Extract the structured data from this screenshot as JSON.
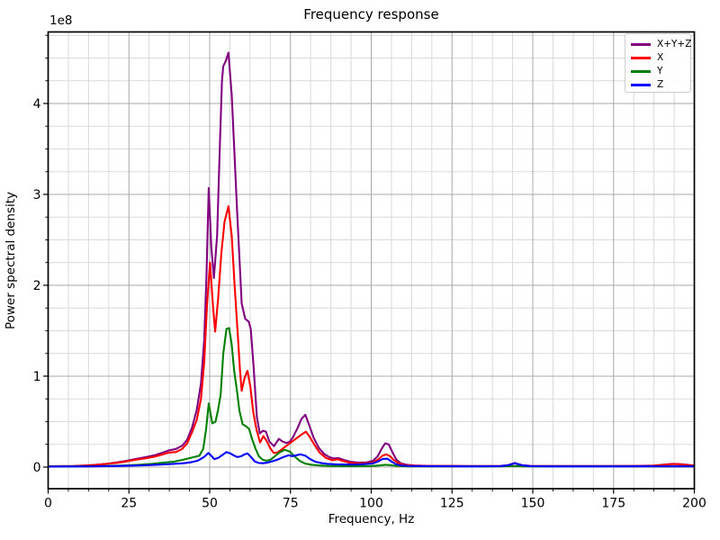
{
  "figure": {
    "title": "Frequency response",
    "xlabel": "Frequency, Hz",
    "ylabel": "Power spectral density",
    "y_offset_label": "1e8"
  },
  "chart_data": {
    "type": "line",
    "title": "Frequency response",
    "xlabel": "Frequency, Hz",
    "ylabel": "Power spectral density",
    "y_units_factor": "1e8",
    "xlim": [
      0,
      200
    ],
    "ylim": [
      -0.238,
      4.787
    ],
    "x_ticks": [
      0,
      25,
      50,
      75,
      100,
      125,
      150,
      175,
      200
    ],
    "y_ticks": [
      0,
      1,
      2,
      3,
      4
    ],
    "x_minor_step": 6.25,
    "y_minor_step": 0.25,
    "grid": "both",
    "legend_position": "upper right",
    "colors": {
      "major_grid": "#a8a8a8",
      "minor_grid": "#dadada",
      "spine": "#000000",
      "background": "#ffffff"
    },
    "series": [
      {
        "name": "X+Y+Z",
        "color": "#800080",
        "points": [
          [
            0,
            0.008
          ],
          [
            4,
            0.01
          ],
          [
            8,
            0.012
          ],
          [
            12,
            0.018
          ],
          [
            15,
            0.025
          ],
          [
            18,
            0.035
          ],
          [
            21,
            0.05
          ],
          [
            24,
            0.068
          ],
          [
            27,
            0.088
          ],
          [
            30,
            0.108
          ],
          [
            33,
            0.13
          ],
          [
            35.5,
            0.16
          ],
          [
            37.5,
            0.185
          ],
          [
            39.5,
            0.198
          ],
          [
            41.5,
            0.235
          ],
          [
            43,
            0.3
          ],
          [
            44.5,
            0.43
          ],
          [
            46,
            0.63
          ],
          [
            47.3,
            0.92
          ],
          [
            48.3,
            1.4
          ],
          [
            49,
            2.1
          ],
          [
            49.7,
            3.07
          ],
          [
            50.5,
            2.42
          ],
          [
            51.3,
            2.08
          ],
          [
            52.3,
            2.55
          ],
          [
            53.2,
            3.6
          ],
          [
            53.8,
            4.25
          ],
          [
            54.2,
            4.41
          ],
          [
            55,
            4.47
          ],
          [
            55.8,
            4.56
          ],
          [
            56.8,
            4.1
          ],
          [
            57.6,
            3.5
          ],
          [
            58.4,
            2.88
          ],
          [
            59.2,
            2.3
          ],
          [
            59.9,
            1.8
          ],
          [
            61,
            1.63
          ],
          [
            62.1,
            1.6
          ],
          [
            62.7,
            1.52
          ],
          [
            63.6,
            1.1
          ],
          [
            64.6,
            0.55
          ],
          [
            65.5,
            0.37
          ],
          [
            66.5,
            0.4
          ],
          [
            67.4,
            0.39
          ],
          [
            68.5,
            0.28
          ],
          [
            69.9,
            0.23
          ],
          [
            71.4,
            0.31
          ],
          [
            72.6,
            0.28
          ],
          [
            73.8,
            0.265
          ],
          [
            74.8,
            0.28
          ],
          [
            75.8,
            0.33
          ],
          [
            77.2,
            0.43
          ],
          [
            78.4,
            0.53
          ],
          [
            79.6,
            0.575
          ],
          [
            80.8,
            0.46
          ],
          [
            82.2,
            0.32
          ],
          [
            83.8,
            0.21
          ],
          [
            85.4,
            0.145
          ],
          [
            87,
            0.11
          ],
          [
            88.4,
            0.095
          ],
          [
            89.8,
            0.1
          ],
          [
            91.4,
            0.08
          ],
          [
            93.4,
            0.06
          ],
          [
            95.8,
            0.05
          ],
          [
            98.4,
            0.05
          ],
          [
            100.6,
            0.07
          ],
          [
            102,
            0.12
          ],
          [
            103.2,
            0.2
          ],
          [
            104.3,
            0.26
          ],
          [
            105.4,
            0.25
          ],
          [
            106.6,
            0.16
          ],
          [
            107.8,
            0.08
          ],
          [
            109.2,
            0.04
          ],
          [
            111,
            0.025
          ],
          [
            113.4,
            0.018
          ],
          [
            117,
            0.014
          ],
          [
            122,
            0.013
          ],
          [
            128,
            0.012
          ],
          [
            135,
            0.012
          ],
          [
            140,
            0.013
          ],
          [
            142.4,
            0.022
          ],
          [
            144.4,
            0.046
          ],
          [
            146.6,
            0.022
          ],
          [
            149.4,
            0.013
          ],
          [
            154,
            0.012
          ],
          [
            162,
            0.012
          ],
          [
            172,
            0.012
          ],
          [
            182,
            0.013
          ],
          [
            187.6,
            0.016
          ],
          [
            189.8,
            0.024
          ],
          [
            191.6,
            0.03
          ],
          [
            193.4,
            0.035
          ],
          [
            195.4,
            0.032
          ],
          [
            197.4,
            0.026
          ],
          [
            200,
            0.017
          ]
        ]
      },
      {
        "name": "X",
        "color": "#ff0000",
        "points": [
          [
            0,
            0.008
          ],
          [
            4,
            0.01
          ],
          [
            8,
            0.012
          ],
          [
            12,
            0.018
          ],
          [
            15,
            0.025
          ],
          [
            18,
            0.035
          ],
          [
            21,
            0.045
          ],
          [
            24,
            0.06
          ],
          [
            27,
            0.08
          ],
          [
            30,
            0.095
          ],
          [
            33,
            0.115
          ],
          [
            35.5,
            0.14
          ],
          [
            37.5,
            0.16
          ],
          [
            39.5,
            0.165
          ],
          [
            41.5,
            0.2
          ],
          [
            43,
            0.26
          ],
          [
            44.5,
            0.38
          ],
          [
            46,
            0.52
          ],
          [
            47.3,
            0.75
          ],
          [
            48.3,
            1.15
          ],
          [
            49.2,
            1.8
          ],
          [
            50.1,
            2.25
          ],
          [
            51,
            1.78
          ],
          [
            51.7,
            1.49
          ],
          [
            52.6,
            1.85
          ],
          [
            53.6,
            2.35
          ],
          [
            54.6,
            2.7
          ],
          [
            55.8,
            2.87
          ],
          [
            56.8,
            2.55
          ],
          [
            57.8,
            1.95
          ],
          [
            58.8,
            1.4
          ],
          [
            59.4,
            1.05
          ],
          [
            59.9,
            0.84
          ],
          [
            60.8,
            0.98
          ],
          [
            61.7,
            1.06
          ],
          [
            62.6,
            0.88
          ],
          [
            63.5,
            0.6
          ],
          [
            64.5,
            0.41
          ],
          [
            65.6,
            0.27
          ],
          [
            66.6,
            0.34
          ],
          [
            67.6,
            0.29
          ],
          [
            68.7,
            0.21
          ],
          [
            69.8,
            0.155
          ],
          [
            71,
            0.16
          ],
          [
            72.5,
            0.2
          ],
          [
            74,
            0.24
          ],
          [
            75.5,
            0.28
          ],
          [
            77,
            0.32
          ],
          [
            78.5,
            0.36
          ],
          [
            79.8,
            0.39
          ],
          [
            81,
            0.33
          ],
          [
            82.5,
            0.24
          ],
          [
            84,
            0.16
          ],
          [
            86,
            0.1
          ],
          [
            88,
            0.075
          ],
          [
            89.6,
            0.085
          ],
          [
            91,
            0.07
          ],
          [
            93,
            0.05
          ],
          [
            95.5,
            0.04
          ],
          [
            98,
            0.04
          ],
          [
            100.5,
            0.05
          ],
          [
            102,
            0.08
          ],
          [
            103.5,
            0.125
          ],
          [
            104.6,
            0.14
          ],
          [
            105.8,
            0.12
          ],
          [
            107.2,
            0.07
          ],
          [
            108.8,
            0.035
          ],
          [
            110.5,
            0.02
          ],
          [
            113,
            0.015
          ],
          [
            117,
            0.012
          ],
          [
            123,
            0.01
          ],
          [
            130,
            0.01
          ],
          [
            140,
            0.01
          ],
          [
            150,
            0.01
          ],
          [
            160,
            0.01
          ],
          [
            170,
            0.01
          ],
          [
            180,
            0.01
          ],
          [
            186,
            0.012
          ],
          [
            188.6,
            0.018
          ],
          [
            190.8,
            0.027
          ],
          [
            193,
            0.033
          ],
          [
            195.4,
            0.031
          ],
          [
            197.6,
            0.022
          ],
          [
            200,
            0.015
          ]
        ]
      },
      {
        "name": "Y",
        "color": "#008000",
        "points": [
          [
            0,
            0.005
          ],
          [
            6,
            0.006
          ],
          [
            12,
            0.008
          ],
          [
            18,
            0.012
          ],
          [
            24,
            0.018
          ],
          [
            28,
            0.025
          ],
          [
            32,
            0.035
          ],
          [
            36,
            0.05
          ],
          [
            39,
            0.06
          ],
          [
            41.7,
            0.08
          ],
          [
            44.5,
            0.105
          ],
          [
            46.8,
            0.125
          ],
          [
            48,
            0.2
          ],
          [
            48.9,
            0.42
          ],
          [
            49.7,
            0.7
          ],
          [
            50.8,
            0.48
          ],
          [
            51.8,
            0.5
          ],
          [
            52.6,
            0.63
          ],
          [
            53.4,
            0.8
          ],
          [
            54.2,
            1.25
          ],
          [
            55.2,
            1.52
          ],
          [
            56,
            1.53
          ],
          [
            56.8,
            1.35
          ],
          [
            57.6,
            1.05
          ],
          [
            58.4,
            0.85
          ],
          [
            59.2,
            0.62
          ],
          [
            60.2,
            0.47
          ],
          [
            61.2,
            0.45
          ],
          [
            62.2,
            0.42
          ],
          [
            63.2,
            0.3
          ],
          [
            64.2,
            0.2
          ],
          [
            65.2,
            0.12
          ],
          [
            66.4,
            0.08
          ],
          [
            67.6,
            0.07
          ],
          [
            68.8,
            0.08
          ],
          [
            70.2,
            0.12
          ],
          [
            71.6,
            0.16
          ],
          [
            73.2,
            0.19
          ],
          [
            74.8,
            0.17
          ],
          [
            76.2,
            0.12
          ],
          [
            77.8,
            0.07
          ],
          [
            79.4,
            0.04
          ],
          [
            81.5,
            0.025
          ],
          [
            84,
            0.018
          ],
          [
            87,
            0.012
          ],
          [
            91,
            0.01
          ],
          [
            96,
            0.01
          ],
          [
            100,
            0.012
          ],
          [
            102.5,
            0.018
          ],
          [
            104.5,
            0.025
          ],
          [
            106,
            0.02
          ],
          [
            108,
            0.012
          ],
          [
            112,
            0.008
          ],
          [
            120,
            0.008
          ],
          [
            130,
            0.008
          ],
          [
            140,
            0.008
          ],
          [
            144,
            0.012
          ],
          [
            148,
            0.008
          ],
          [
            160,
            0.008
          ],
          [
            175,
            0.008
          ],
          [
            190,
            0.008
          ],
          [
            200,
            0.008
          ]
        ]
      },
      {
        "name": "Z",
        "color": "#0000ff",
        "points": [
          [
            0,
            0.005
          ],
          [
            8,
            0.006
          ],
          [
            14,
            0.008
          ],
          [
            20,
            0.011
          ],
          [
            25,
            0.015
          ],
          [
            30,
            0.02
          ],
          [
            34,
            0.026
          ],
          [
            38,
            0.033
          ],
          [
            42,
            0.042
          ],
          [
            44.5,
            0.055
          ],
          [
            46.3,
            0.07
          ],
          [
            48.2,
            0.11
          ],
          [
            49.6,
            0.155
          ],
          [
            50.6,
            0.12
          ],
          [
            51.4,
            0.088
          ],
          [
            52.6,
            0.1
          ],
          [
            54,
            0.135
          ],
          [
            55.2,
            0.165
          ],
          [
            56.4,
            0.15
          ],
          [
            57.6,
            0.125
          ],
          [
            58.6,
            0.11
          ],
          [
            59.8,
            0.12
          ],
          [
            60.8,
            0.14
          ],
          [
            61.7,
            0.15
          ],
          [
            62.8,
            0.11
          ],
          [
            64,
            0.06
          ],
          [
            65.2,
            0.045
          ],
          [
            66.6,
            0.042
          ],
          [
            68,
            0.05
          ],
          [
            69.6,
            0.065
          ],
          [
            71.2,
            0.085
          ],
          [
            72.8,
            0.11
          ],
          [
            74.4,
            0.13
          ],
          [
            75.6,
            0.12
          ],
          [
            76.8,
            0.13
          ],
          [
            78.2,
            0.14
          ],
          [
            79.6,
            0.125
          ],
          [
            81,
            0.09
          ],
          [
            82.6,
            0.06
          ],
          [
            84.4,
            0.045
          ],
          [
            86.5,
            0.035
          ],
          [
            89,
            0.03
          ],
          [
            92,
            0.028
          ],
          [
            95,
            0.028
          ],
          [
            98,
            0.032
          ],
          [
            100.5,
            0.04
          ],
          [
            102,
            0.06
          ],
          [
            103.6,
            0.09
          ],
          [
            105,
            0.092
          ],
          [
            106.3,
            0.06
          ],
          [
            107.6,
            0.032
          ],
          [
            109.2,
            0.018
          ],
          [
            111.5,
            0.012
          ],
          [
            115,
            0.01
          ],
          [
            120,
            0.009
          ],
          [
            127,
            0.008
          ],
          [
            134,
            0.008
          ],
          [
            140,
            0.01
          ],
          [
            142.4,
            0.02
          ],
          [
            144.4,
            0.042
          ],
          [
            146.6,
            0.02
          ],
          [
            149,
            0.01
          ],
          [
            154,
            0.008
          ],
          [
            162,
            0.008
          ],
          [
            172,
            0.008
          ],
          [
            185,
            0.008
          ],
          [
            200,
            0.008
          ]
        ]
      }
    ]
  }
}
